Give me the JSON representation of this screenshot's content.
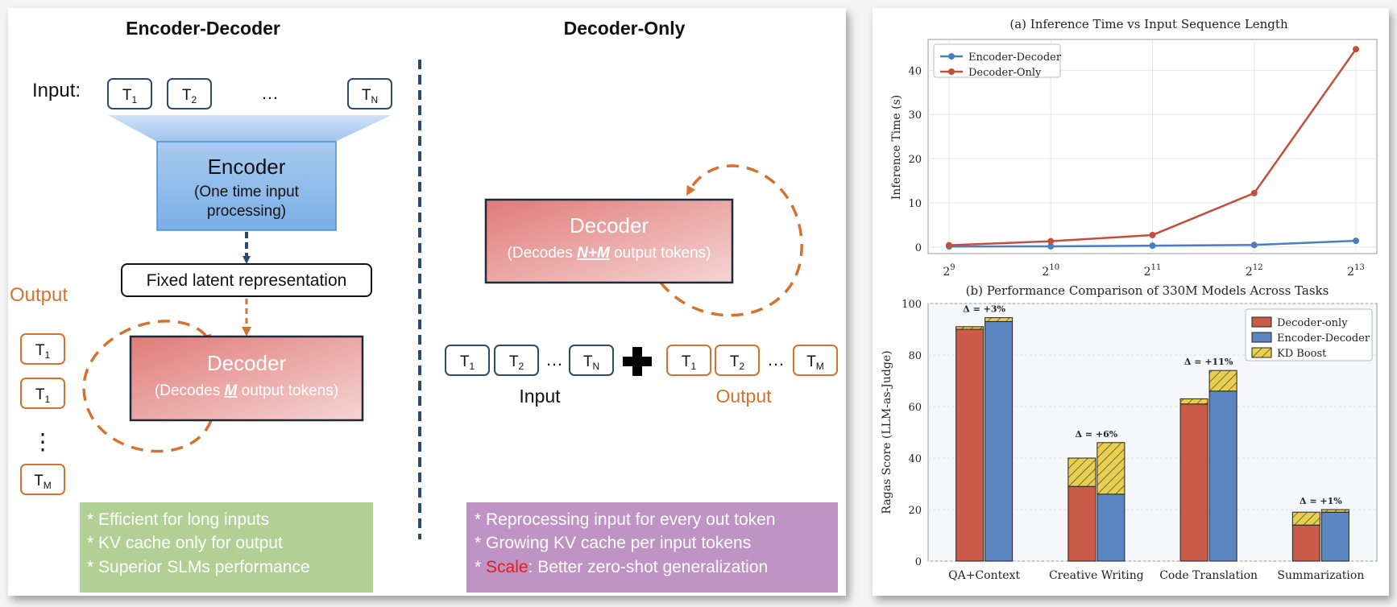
{
  "diagram": {
    "enc_dec": {
      "title": "Encoder-Decoder",
      "input_label": "Input:",
      "input_tokens": [
        {
          "base": "T",
          "sub": "1"
        },
        {
          "base": "T",
          "sub": "2"
        },
        {
          "base": "T",
          "sub": "N"
        }
      ],
      "ellipsis": "…",
      "encoder_title": "Encoder",
      "encoder_sub1": "(One time input",
      "encoder_sub2": "processing)",
      "latent": "Fixed latent representation",
      "output_label": "Output",
      "output_tokens": [
        {
          "base": "T",
          "sub": "1"
        },
        {
          "base": "T",
          "sub": "1"
        },
        {
          "base": "T",
          "sub": "M"
        }
      ],
      "vertical_dots": "⋮",
      "decoder_title": "Decoder",
      "decoder_sub_pre": "(Decodes ",
      "decoder_sub_em": "M",
      "decoder_sub_post": " output tokens)",
      "notes": [
        "* Efficient for long inputs",
        "* KV cache only for output",
        "* Superior SLMs performance"
      ]
    },
    "dec_only": {
      "title": "Decoder-Only",
      "decoder_title": "Decoder",
      "decoder_sub_pre": "(Decodes ",
      "decoder_sub_em": "N+M",
      "decoder_sub_post": " output tokens)",
      "input_tokens": [
        {
          "base": "T",
          "sub": "1"
        },
        {
          "base": "T",
          "sub": "2"
        },
        {
          "base": "T",
          "sub": "N"
        }
      ],
      "output_tokens": [
        {
          "base": "T",
          "sub": "1"
        },
        {
          "base": "T",
          "sub": "2"
        },
        {
          "base": "T",
          "sub": "M"
        }
      ],
      "ellipsis": "…",
      "input_label": "Input",
      "output_label": "Output",
      "notes": [
        "* Reprocessing input for every out token",
        "* Growing KV cache per input tokens"
      ],
      "note3_star": "* ",
      "note3_scale": "Scale",
      "note3_rest": ": Better zero-shot generalization"
    }
  },
  "chart_data": [
    {
      "type": "line",
      "title": "(a) Inference Time vs Input Sequence Length",
      "xlabel": "",
      "ylabel": "Inference Time (s)",
      "x": [
        512,
        1024,
        2048,
        4096,
        8192
      ],
      "x_tick_labels": [
        {
          "base": "2",
          "exp": "9"
        },
        {
          "base": "2",
          "exp": "10"
        },
        {
          "base": "2",
          "exp": "11"
        },
        {
          "base": "2",
          "exp": "12"
        },
        {
          "base": "2",
          "exp": "13"
        }
      ],
      "x_scale": "log2",
      "y_ticks": [
        0,
        10,
        20,
        30,
        40
      ],
      "ylim": [
        -1.5,
        47
      ],
      "grid": true,
      "legend_position": "top-left",
      "series": [
        {
          "name": "Encoder-Decoder",
          "color": "#4a7ec0",
          "values": [
            0.1,
            0.15,
            0.3,
            0.45,
            1.4
          ]
        },
        {
          "name": "Decoder-Only",
          "color": "#c44e3e",
          "values": [
            0.4,
            1.3,
            2.7,
            12.2,
            44.8
          ]
        }
      ]
    },
    {
      "type": "bar",
      "title": "(b) Performance Comparison of 330M Models Across Tasks",
      "xlabel": "",
      "ylabel": "Ragas Score (LLM-as-Judge)",
      "categories": [
        "QA+Context",
        "Creative Writing",
        "Code Translation",
        "Summarization"
      ],
      "y_ticks": [
        0,
        20,
        40,
        60,
        80,
        100
      ],
      "ylim": [
        0,
        100
      ],
      "grid": true,
      "legend_position": "top-right",
      "series": [
        {
          "name": "Decoder-only",
          "color": "#c95b48",
          "values": [
            90,
            29,
            61,
            14
          ]
        },
        {
          "name": "Encoder-Decoder",
          "color": "#5b86c2",
          "values": [
            93,
            26,
            66,
            19
          ]
        },
        {
          "name": "KD Boost",
          "color": "#e8cf50",
          "decoder_only_boost": [
            1,
            11,
            2,
            5
          ],
          "encoder_decoder_boost": [
            1.5,
            20,
            8,
            1
          ]
        }
      ],
      "annotations": [
        "Δ = +3%",
        "Δ = +6%",
        "Δ = +11%",
        "Δ = +1%"
      ]
    }
  ]
}
